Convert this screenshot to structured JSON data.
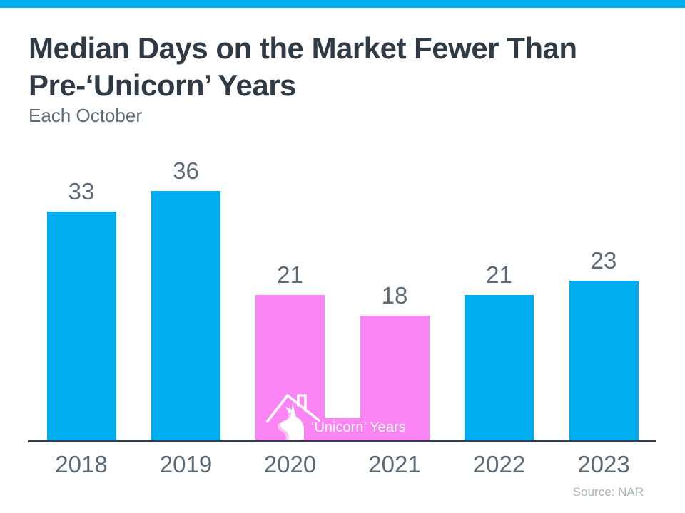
{
  "banner": {
    "color": "#00AEEF"
  },
  "header": {
    "title_lines": [
      "Median Days on the Market Fewer Than",
      "Pre-‘Unicorn’ Years"
    ],
    "subtitle": "Each October"
  },
  "chart_data": {
    "type": "bar",
    "title": "Median Days on the Market Fewer Than Pre-‘Unicorn’ Years",
    "subtitle": "Each October",
    "categories": [
      "2018",
      "2019",
      "2020",
      "2021",
      "2022",
      "2023"
    ],
    "values": [
      33,
      36,
      21,
      18,
      21,
      23
    ],
    "bar_colors": [
      "#00AEEF",
      "#00AEEF",
      "#FC85F6",
      "#FC85F6",
      "#00AEEF",
      "#00AEEF"
    ],
    "xlabel": "",
    "ylabel": "",
    "ylim": [
      0,
      36
    ],
    "grid": false,
    "value_labels_shown": true,
    "legend_position": "none",
    "highlight": {
      "label": "‘Unicorn’ Years",
      "categories": [
        "2020",
        "2021"
      ],
      "color": "#FC85F6",
      "icon": "unicorn-house-icon"
    }
  },
  "annotation": {
    "unicorn_label": "‘Unicorn’ Years"
  },
  "footer": {
    "source": "Source: NAR"
  },
  "colors": {
    "bar_blue": "#00AEEF",
    "bar_pink": "#FC85F6",
    "banner": "#00AEEF",
    "axis": "#333E48",
    "label_gray": "#5C6A76",
    "title": "#2F3A44",
    "source_gray": "#ABB5BD"
  }
}
